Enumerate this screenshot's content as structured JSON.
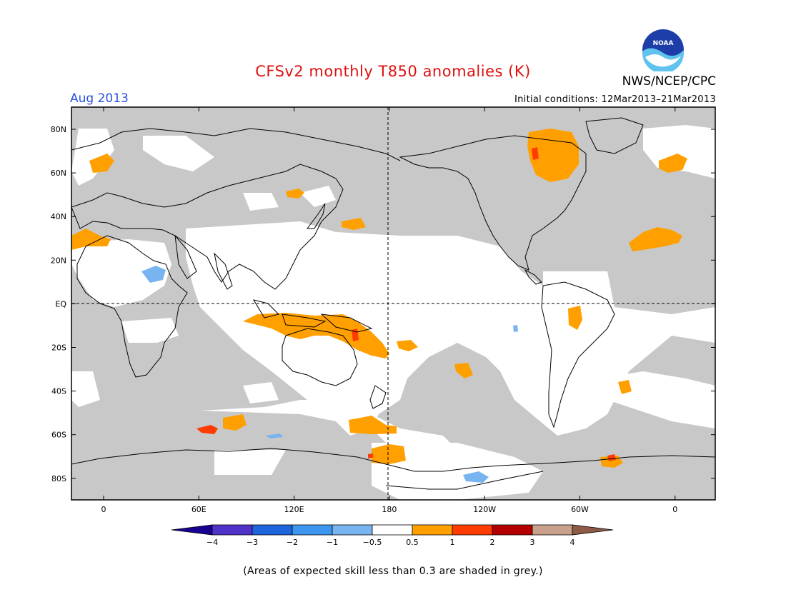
{
  "header": {
    "title": "CFSv2 monthly T850 anomalies (K)",
    "organization": "NWS/NCEP/CPC",
    "logo_text": "NOAA",
    "period": "Aug 2013",
    "initial_conditions": "Initial conditions: 12Mar2013–21Mar2013"
  },
  "map": {
    "projection": "cylindrical equidistant, centered 180",
    "lat_labels": [
      "80N",
      "60N",
      "40N",
      "20N",
      "EQ",
      "20S",
      "40S",
      "60S",
      "80S"
    ],
    "lon_labels": [
      "0",
      "60E",
      "120E",
      "180",
      "120W",
      "60W",
      "0"
    ],
    "colors": {
      "low_skill_grey": "#c8c8c8",
      "anom_0_5_to_1": "#ffa000",
      "anom_1_to_2": "#ff3c00",
      "anom_neg_0_5_to_neg_1": "#78b4f0",
      "coast": "#000000"
    }
  },
  "legend": {
    "ticks": [
      "−4",
      "−3",
      "−2",
      "−1",
      "−0.5",
      "0.5",
      "1",
      "2",
      "3",
      "4"
    ],
    "colors": [
      "#1a0091",
      "#5032c8",
      "#1e64dc",
      "#3c96f0",
      "#78b4f0",
      "#ffffff",
      "#ffa000",
      "#ff3c00",
      "#b40000",
      "#c8a08c",
      "#8c5a46"
    ]
  },
  "footer": {
    "skill_note": "(Areas of expected skill less than 0.3 are shaded in grey.)"
  }
}
